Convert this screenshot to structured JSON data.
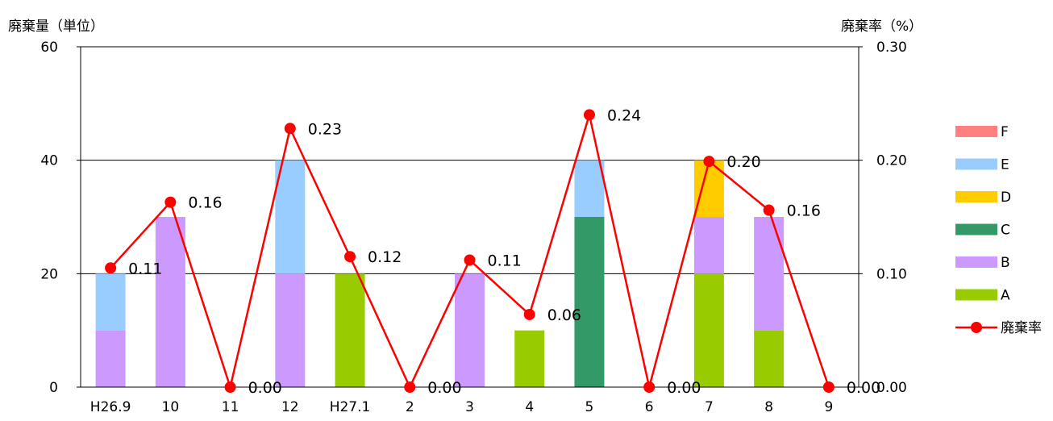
{
  "chart_data": {
    "type": "bar",
    "title": "",
    "ylabel": "廃棄量（単位）",
    "y2label": "廃棄率（%）",
    "categories": [
      "H26.9",
      "10",
      "11",
      "12",
      "H27.1",
      "2",
      "3",
      "4",
      "5",
      "6",
      "7",
      "8",
      "9"
    ],
    "ylim": [
      0,
      60
    ],
    "y_ticks": [
      "0",
      "20",
      "40",
      "60"
    ],
    "y2lim": [
      0,
      0.3
    ],
    "y2_ticks": [
      "0.00",
      "0.10",
      "0.20",
      "0.30"
    ],
    "grid": true,
    "legend": "right",
    "stacked": true,
    "series": [
      {
        "name": "A",
        "color": "#99CC00",
        "values": [
          0,
          0,
          0,
          0,
          20,
          0,
          0,
          10,
          0,
          0,
          20,
          10,
          0
        ]
      },
      {
        "name": "B",
        "color": "#CC99FF",
        "values": [
          10,
          30,
          0,
          20,
          0,
          0,
          20,
          0,
          0,
          0,
          10,
          20,
          0
        ]
      },
      {
        "name": "C",
        "color": "#339966",
        "values": [
          0,
          0,
          0,
          0,
          0,
          0,
          0,
          0,
          30,
          0,
          0,
          0,
          0
        ]
      },
      {
        "name": "D",
        "color": "#FFCC00",
        "values": [
          0,
          0,
          0,
          0,
          0,
          0,
          0,
          0,
          0,
          0,
          10,
          0,
          0
        ]
      },
      {
        "name": "E",
        "color": "#99CCFF",
        "values": [
          10,
          0,
          0,
          20,
          0,
          0,
          0,
          0,
          10,
          0,
          0,
          0,
          0
        ]
      },
      {
        "name": "F",
        "color": "#FF8080",
        "values": [
          0,
          0,
          0,
          0,
          0,
          0,
          0,
          0,
          0,
          0,
          0,
          0,
          0
        ]
      }
    ],
    "line_series": {
      "name": "廃棄率",
      "color": "#FF0000",
      "axis": "right",
      "values": [
        0.105,
        0.163,
        0.0,
        0.228,
        0.115,
        0.0,
        0.112,
        0.064,
        0.24,
        0.0,
        0.199,
        0.156,
        0.0
      ],
      "labels": [
        "0.11",
        "0.16",
        "0.00",
        "0.23",
        "0.12",
        "0.00",
        "0.11",
        "0.06",
        "0.24",
        "0.00",
        "0.20",
        "0.16",
        "0.00"
      ]
    },
    "legend_order": [
      "F",
      "E",
      "D",
      "C",
      "B",
      "A",
      "廃棄率"
    ]
  }
}
